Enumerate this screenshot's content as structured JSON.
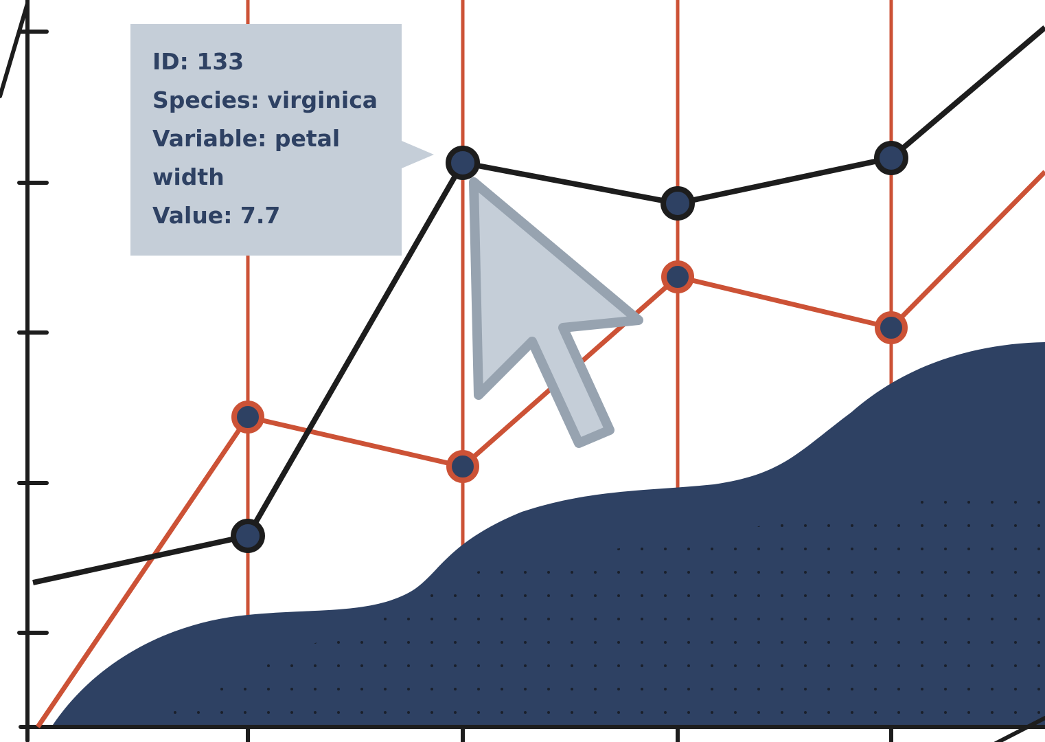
{
  "tooltip": {
    "lines": [
      "ID: 133",
      "Species: virginica",
      "Variable: petal width",
      "Value: 7.7"
    ]
  }
}
